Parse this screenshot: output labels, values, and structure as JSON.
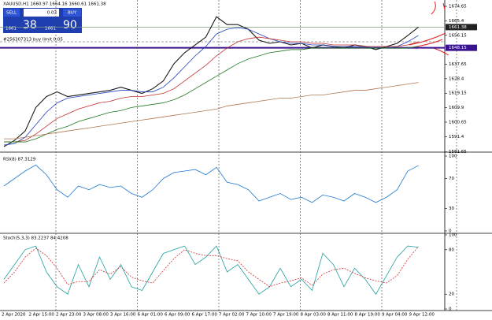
{
  "header": {
    "symbol_info": "XAUUSD,H1  1660.97 1664.16 1660.61 1661.38"
  },
  "trade_panel": {
    "sell": "SELL",
    "lot": "0.03",
    "buy": "BUY",
    "sell_price_main": "1661",
    "sell_price_pips": "38",
    "buy_price_main": "1661",
    "buy_price_pips": "90"
  },
  "chart_data": [
    {
      "type": "line",
      "panel": "price",
      "ylim": [
        1582,
        1678.7
      ],
      "yticks": [
        1674.65,
        1665.4,
        1656.15,
        1637.65,
        1628.4,
        1619.15,
        1609.9,
        1600.65,
        1591.4,
        1581.65
      ],
      "price_lines": [
        {
          "value": 1661.38,
          "color": "#7a9a7a",
          "label_bg": "#222"
        },
        {
          "value": 1648.15,
          "color": "#3a1390",
          "label_bg": "#3a1390"
        }
      ],
      "order_line": {
        "value": 1652,
        "label": "#256307313 buy limit 0.05",
        "color": "#888"
      },
      "series": [
        {
          "color": "#1a1a1a",
          "values": [
            1585,
            1589,
            1595,
            1610,
            1617,
            1620,
            1617,
            1618,
            1619,
            1620,
            1621,
            1623,
            1621,
            1619,
            1622,
            1627,
            1638,
            1645,
            1650,
            1655,
            1668,
            1663,
            1663,
            1660,
            1653,
            1651,
            1652,
            1650,
            1651,
            1648,
            1650,
            1649,
            1648,
            1650,
            1649,
            1647,
            1649,
            1651,
            1656,
            1661.38
          ]
        },
        {
          "color": "#2040c0",
          "values": [
            1586,
            1587,
            1591,
            1599,
            1607,
            1613,
            1616,
            1617,
            1618,
            1619,
            1620,
            1621,
            1621,
            1620,
            1620,
            1623,
            1629,
            1636,
            1643,
            1649,
            1657,
            1660,
            1661,
            1660,
            1657,
            1654,
            1652,
            1651,
            1651,
            1650,
            1650,
            1649,
            1649,
            1649,
            1649,
            1648,
            1648,
            1649,
            1652,
            1656
          ]
        },
        {
          "color": "#c03030",
          "values": [
            1588,
            1588,
            1589,
            1593,
            1598,
            1603,
            1606,
            1609,
            1611,
            1613,
            1614,
            1616,
            1617,
            1617,
            1618,
            1619,
            1622,
            1627,
            1632,
            1637,
            1643,
            1648,
            1652,
            1654,
            1655,
            1654,
            1653,
            1652,
            1652,
            1651,
            1651,
            1650,
            1650,
            1650,
            1649,
            1649,
            1649,
            1649,
            1650,
            1652
          ]
        },
        {
          "color": "#207a20",
          "values": [
            1588,
            1588,
            1588,
            1590,
            1593,
            1596,
            1598,
            1601,
            1603,
            1605,
            1607,
            1608,
            1610,
            1611,
            1612,
            1613,
            1615,
            1618,
            1622,
            1626,
            1630,
            1634,
            1638,
            1641,
            1643,
            1645,
            1646,
            1647,
            1647,
            1648,
            1648,
            1648,
            1648,
            1648,
            1648,
            1648,
            1648,
            1648,
            1648,
            1649
          ]
        },
        {
          "color": "#b07850",
          "values": [
            1590,
            1590,
            1591,
            1592,
            1593,
            1594,
            1595,
            1596,
            1597,
            1598,
            1599,
            1600,
            1601,
            1602,
            1603,
            1604,
            1605,
            1606,
            1607,
            1608,
            1609,
            1611,
            1612,
            1613,
            1614,
            1615,
            1616,
            1616,
            1617,
            1618,
            1618,
            1619,
            1620,
            1621,
            1621,
            1622,
            1623,
            1624,
            1625,
            1626
          ]
        }
      ]
    },
    {
      "type": "line",
      "panel": "rsi",
      "title": "RSI(8) 87.3129",
      "ylim": [
        0,
        100
      ],
      "yticks": [
        100,
        70,
        30,
        0
      ],
      "series": [
        {
          "color": "#1e78d0",
          "values": [
            60,
            70,
            80,
            88,
            75,
            55,
            45,
            60,
            55,
            62,
            58,
            60,
            50,
            45,
            55,
            70,
            78,
            80,
            82,
            75,
            85,
            65,
            62,
            55,
            40,
            45,
            50,
            42,
            45,
            38,
            48,
            45,
            40,
            50,
            45,
            38,
            45,
            55,
            80,
            87.3129
          ]
        }
      ]
    },
    {
      "type": "line",
      "panel": "stoch",
      "title": "Stoch(5,3,3) 83.2237 84.4208",
      "ylim": [
        0,
        100
      ],
      "yticks": [
        100,
        80,
        20,
        0
      ],
      "series": [
        {
          "color": "#20a0a0",
          "values": [
            40,
            60,
            80,
            85,
            50,
            30,
            20,
            60,
            30,
            70,
            40,
            60,
            30,
            25,
            50,
            75,
            80,
            85,
            60,
            70,
            85,
            50,
            60,
            40,
            20,
            30,
            55,
            30,
            40,
            25,
            75,
            60,
            30,
            55,
            40,
            20,
            45,
            70,
            85,
            83.2237
          ]
        },
        {
          "color": "#d03030",
          "dashed": true,
          "values": [
            35,
            50,
            70,
            82,
            72,
            55,
            33,
            37,
            37,
            53,
            47,
            57,
            43,
            38,
            35,
            52,
            68,
            80,
            75,
            72,
            72,
            68,
            65,
            50,
            40,
            30,
            35,
            38,
            42,
            32,
            47,
            53,
            55,
            48,
            42,
            38,
            35,
            45,
            67,
            84.4208
          ]
        }
      ]
    }
  ],
  "x_labels": [
    "2 Apr 2020",
    "2 Apr 15:00",
    "2 Apr 23:00",
    "3 Apr 08:00",
    "3 Apr 16:00",
    "6 Apr 01:00",
    "6 Apr 09:00",
    "6 Apr 17:00",
    "7 Apr 02:00",
    "7 Apr 10:00",
    "7 Apr 19:00",
    "8 Apr 03:00",
    "8 Apr 11:00",
    "8 Apr 19:00",
    "9 Apr 04:00",
    "9 Apr 12:00"
  ]
}
